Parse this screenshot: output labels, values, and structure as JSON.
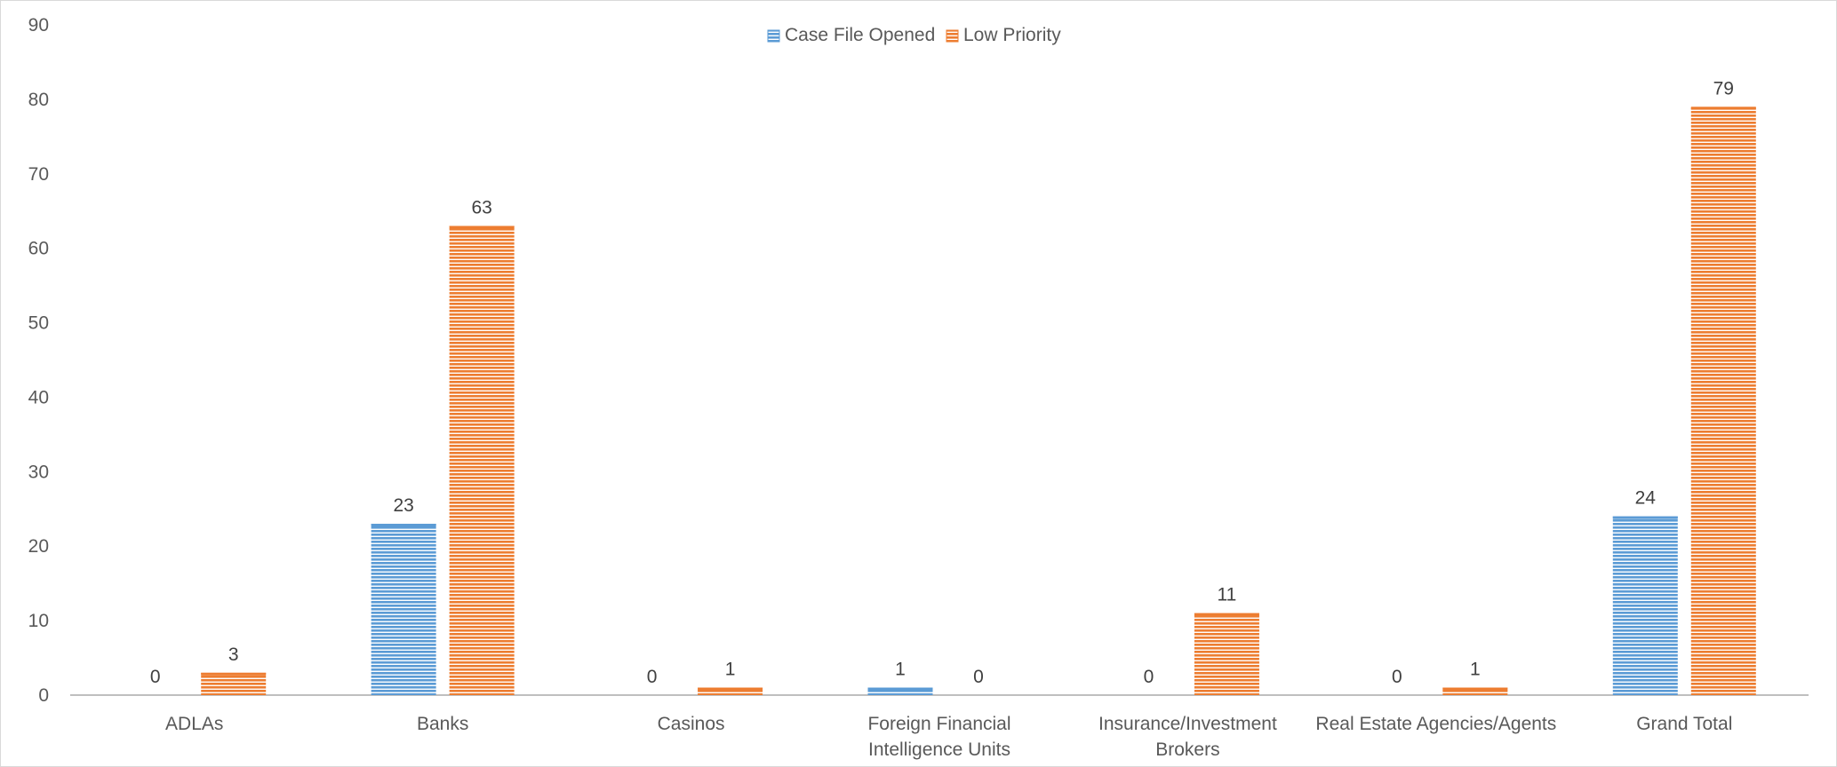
{
  "chart_data": {
    "type": "bar",
    "title": "",
    "xlabel": "",
    "ylabel": "",
    "ylim": [
      0,
      90
    ],
    "yticks": [
      0,
      10,
      20,
      30,
      40,
      50,
      60,
      70,
      80,
      90
    ],
    "grid": false,
    "legend_position": "top-center",
    "categories": [
      [
        "ADLAs"
      ],
      [
        "Banks"
      ],
      [
        "Casinos"
      ],
      [
        "Foreign Financial",
        "Intelligence Units"
      ],
      [
        "Insurance/Investment",
        "Brokers"
      ],
      [
        "Real Estate Agencies/Agents"
      ],
      [
        "Grand Total"
      ]
    ],
    "series": [
      {
        "name": "Case File Opened",
        "color": "#5b9bd5",
        "values": [
          0,
          23,
          0,
          1,
          0,
          0,
          24
        ]
      },
      {
        "name": "Low Priority",
        "color": "#ed7d31",
        "values": [
          3,
          63,
          1,
          0,
          11,
          1,
          79
        ]
      }
    ],
    "data_labels": true,
    "bar_pattern": "horizontal-stripes"
  }
}
